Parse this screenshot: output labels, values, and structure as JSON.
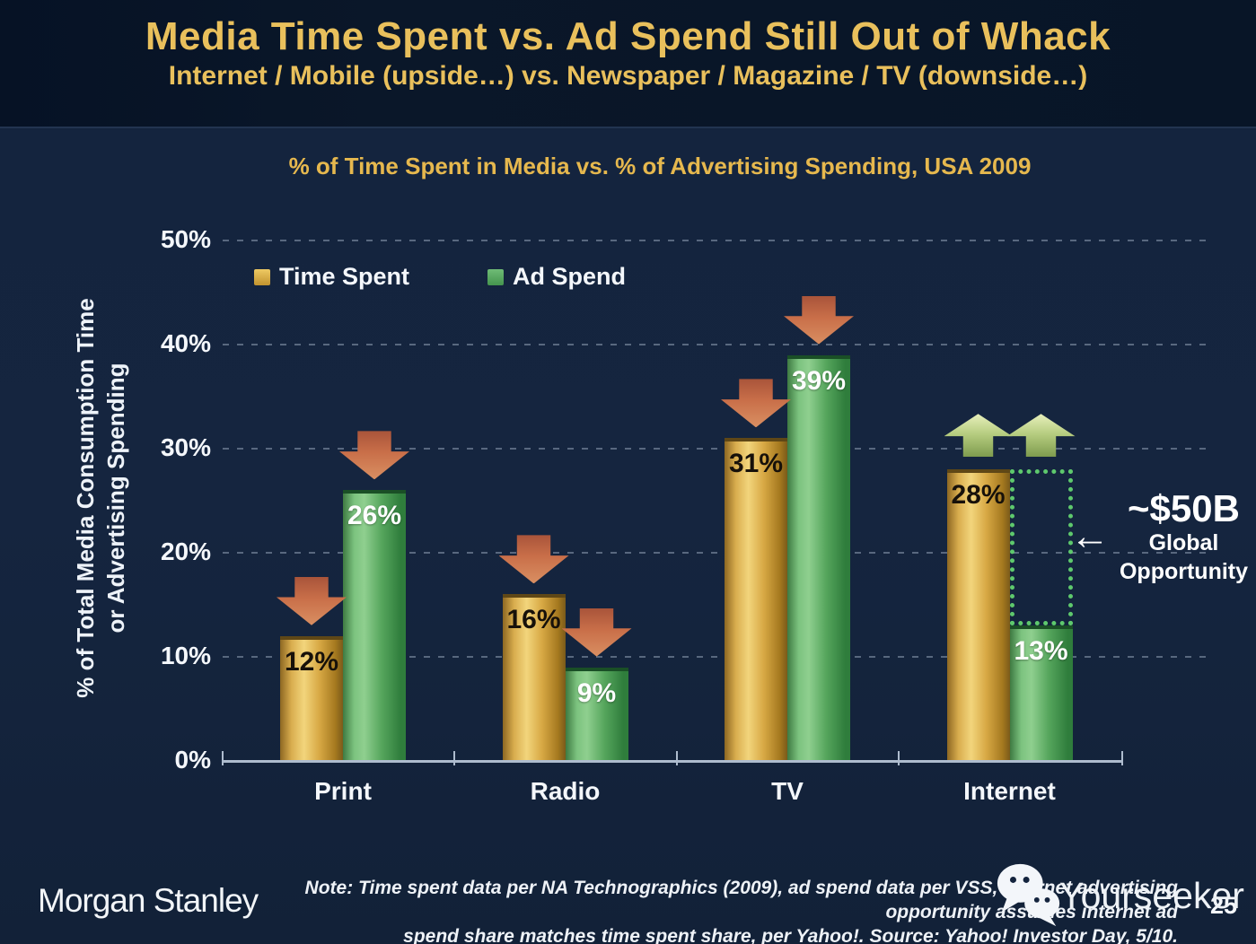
{
  "header": {
    "title": "Media Time Spent vs. Ad Spend Still Out of Whack",
    "subtitle": "Internet / Mobile (upside…) vs. Newspaper / Magazine / TV (downside…)"
  },
  "chart_data": {
    "type": "bar",
    "title": "% of Time Spent in Media vs. % of Advertising Spending, USA 2009",
    "ylabel_line1": "% of Total Media Consumption Time",
    "ylabel_line2": "or Advertising Spending",
    "categories": [
      "Print",
      "Radio",
      "TV",
      "Internet"
    ],
    "series": [
      {
        "name": "Time Spent",
        "values": [
          12,
          16,
          31,
          28
        ]
      },
      {
        "name": "Ad Spend",
        "values": [
          26,
          9,
          39,
          13
        ]
      }
    ],
    "value_suffix": "%",
    "ylim": [
      0,
      50
    ],
    "yticks": [
      "0%",
      "10%",
      "20%",
      "30%",
      "40%",
      "50%"
    ],
    "grid": "dotted horizontal lines",
    "legend_position": "top-left inside plot",
    "trend_arrows": [
      {
        "category": "Print",
        "dir": "down",
        "at": [
          12,
          26
        ]
      },
      {
        "category": "Radio",
        "dir": "down",
        "at": [
          16,
          9
        ]
      },
      {
        "category": "TV",
        "dir": "down",
        "at": [
          31,
          39
        ]
      },
      {
        "category": "Internet",
        "dir": "up",
        "at": [
          28,
          28
        ]
      }
    ],
    "annotation": {
      "headline": "~$50B",
      "line1": "Global",
      "line2": "Opportunity",
      "arrow_glyph": "←",
      "box": {
        "category_index": 3,
        "from": 13,
        "to": 28
      }
    }
  },
  "legend": [
    {
      "label": "Time Spent"
    },
    {
      "label": "Ad Spend"
    }
  ],
  "footer": {
    "brand": "Morgan Stanley",
    "note_line1": "Note: Time spent data per NA Technographics (2009), ad spend data per VSS, Internet advertising opportunity assumes internet ad",
    "note_line2": "spend share matches time spent share, per Yahoo!. Source: Yahoo! Investor Day, 5/10.",
    "watermark": "Yourseeker",
    "page_number": "25"
  },
  "colors": {
    "header_background": "#081527",
    "body_background": "#14243e",
    "title_gold": "#e9c05c",
    "bar_gold": "#d8a945",
    "bar_green": "#55a55c",
    "down_arrow_red": "#c96f49",
    "up_arrow_green": "#b5cc7f",
    "opportunity_box_green": "#5ec96d",
    "axis_line": "#aebcce",
    "text_white": "#f4f7fb"
  }
}
